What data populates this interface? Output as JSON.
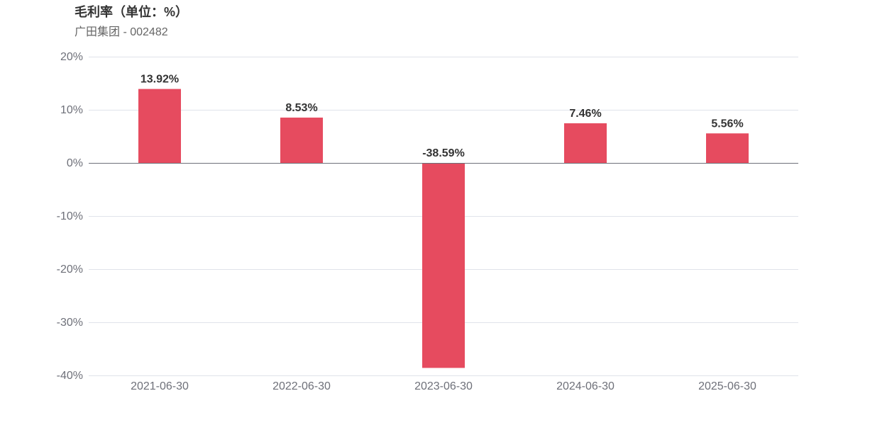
{
  "chart_data": {
    "type": "bar",
    "title": "毛利率（单位：%）",
    "subtitle": "广田集团 - 002482",
    "categories": [
      "2021-06-30",
      "2022-06-30",
      "2023-06-30",
      "2024-06-30",
      "2025-06-30"
    ],
    "values": [
      13.92,
      8.53,
      -38.59,
      7.46,
      5.56
    ],
    "value_labels": [
      "13.92%",
      "8.53%",
      "-38.59%",
      "7.46%",
      "5.56%"
    ],
    "ylim": [
      -40,
      20
    ],
    "yticks": [
      20,
      10,
      0,
      -10,
      -20,
      -30,
      -40
    ],
    "ytick_labels": [
      "20%",
      "10%",
      "0%",
      "-10%",
      "-20%",
      "-30%",
      "-40%"
    ],
    "grid": true,
    "bar_color": "#e64b5f",
    "grid_color": "#e0e3ea",
    "zero_line_color": "#6e7079",
    "axis_label_color": "#6e7079",
    "value_label_color": "#333333"
  }
}
